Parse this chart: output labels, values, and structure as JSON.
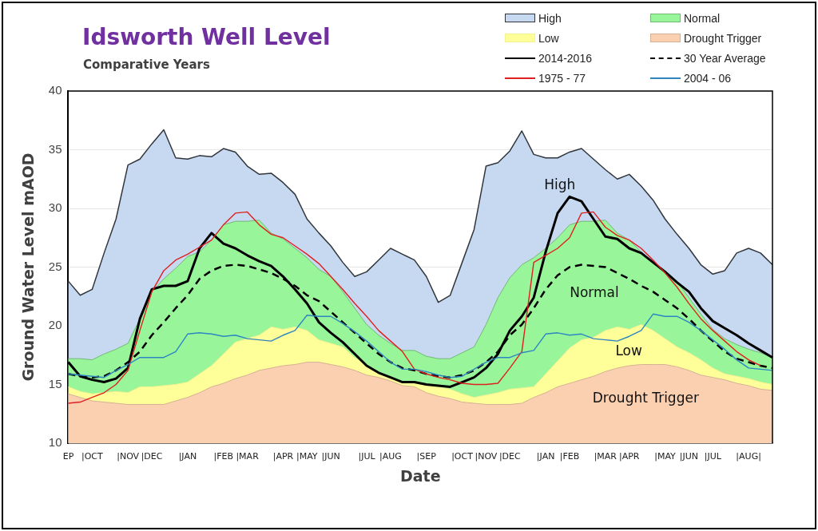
{
  "chart_data": {
    "type": "area",
    "title": "Idsworth Well Level",
    "subtitle": "Comparative Years",
    "xlabel": "Date",
    "ylabel": "Ground Water Level mAOD",
    "categories": [
      "EP",
      null,
      "|OCT",
      null,
      null,
      "|NOV",
      null,
      "|DEC",
      null,
      null,
      "|JAN",
      null,
      null,
      "|FEB",
      null,
      "|MAR",
      null,
      null,
      "|APR",
      null,
      "|MAY",
      null,
      "|JUN",
      null,
      null,
      "|JUL",
      null,
      "|AUG",
      null,
      null,
      "|SEP",
      null,
      null,
      "|OCT",
      null,
      "|NOV",
      null,
      "|DEC",
      null,
      null,
      "|JAN",
      null,
      "|FEB",
      null,
      null,
      "|MAR",
      null,
      "|APR",
      null,
      null,
      "|MAY",
      null,
      "|JUN",
      null,
      "|JUL",
      null,
      null,
      "|AUG|",
      null,
      null
    ],
    "series": [
      {
        "name": "High",
        "color": "#c6d9f1",
        "values": [
          23.8,
          22.6,
          23.1,
          26.2,
          29.1,
          33.7,
          34.2,
          35.5,
          36.7,
          34.3,
          34.2,
          34.5,
          34.4,
          35.1,
          34.8,
          33.6,
          32.9,
          33.0,
          32.2,
          31.2,
          29.1,
          27.9,
          26.8,
          25.4,
          24.2,
          24.6,
          25.6,
          26.6,
          26.1,
          25.6,
          24.2,
          22.0,
          22.6,
          25.4,
          28.2,
          33.6,
          33.9,
          34.9,
          36.6,
          34.6,
          34.3,
          34.3,
          34.8,
          35.1,
          34.2,
          33.3,
          32.5,
          32.9,
          31.9,
          30.7,
          29.1,
          27.8,
          26.6,
          25.2,
          24.4,
          24.7,
          26.2,
          26.6,
          26.2,
          25.2
        ]
      },
      {
        "name": "Normal",
        "color": "#99f59a",
        "values": [
          17.2,
          17.2,
          17.1,
          17.6,
          18.0,
          18.5,
          20.6,
          22.9,
          24.0,
          24.9,
          25.9,
          26.3,
          27.3,
          28.6,
          28.9,
          28.9,
          29.0,
          27.9,
          27.4,
          26.6,
          25.8,
          24.8,
          24.2,
          22.9,
          21.5,
          20.1,
          19.2,
          18.5,
          17.9,
          17.9,
          17.4,
          17.2,
          17.2,
          17.7,
          18.2,
          20.1,
          22.4,
          24.1,
          25.2,
          25.8,
          26.6,
          27.5,
          28.6,
          28.9,
          28.9,
          29.0,
          27.9,
          27.3,
          26.3,
          25.4,
          24.7,
          23.8,
          22.4,
          21.0,
          19.7,
          18.9,
          18.4,
          18.0,
          17.7,
          17.3
        ]
      },
      {
        "name": "Low",
        "color": "#ffff99",
        "values": [
          14.8,
          14.4,
          14.2,
          14.3,
          14.4,
          14.3,
          14.8,
          14.8,
          14.9,
          15.0,
          15.2,
          15.9,
          16.6,
          17.6,
          18.6,
          18.9,
          19.2,
          19.9,
          19.7,
          19.9,
          19.6,
          18.8,
          18.5,
          18.2,
          17.3,
          16.6,
          16.0,
          15.5,
          15.2,
          15.1,
          14.9,
          14.8,
          14.6,
          14.2,
          13.9,
          14.1,
          14.3,
          14.6,
          14.7,
          14.8,
          15.9,
          17.0,
          18.1,
          18.8,
          19.0,
          19.6,
          19.9,
          19.7,
          20.1,
          19.6,
          18.9,
          18.2,
          17.7,
          17.1,
          16.4,
          15.9,
          15.7,
          15.5,
          15.2,
          15.0
        ]
      },
      {
        "name": "Drought Trigger",
        "color": "#fad0b0",
        "values": [
          14.2,
          13.9,
          13.6,
          13.5,
          13.4,
          13.3,
          13.3,
          13.3,
          13.3,
          13.6,
          13.9,
          14.3,
          14.8,
          15.1,
          15.5,
          15.8,
          16.2,
          16.4,
          16.6,
          16.7,
          16.9,
          16.9,
          16.7,
          16.5,
          16.2,
          15.8,
          15.6,
          15.3,
          14.9,
          14.8,
          14.3,
          14.0,
          13.8,
          13.5,
          13.4,
          13.3,
          13.3,
          13.3,
          13.4,
          13.9,
          14.3,
          14.8,
          15.1,
          15.4,
          15.7,
          16.1,
          16.4,
          16.6,
          16.7,
          16.7,
          16.7,
          16.5,
          16.2,
          15.8,
          15.6,
          15.4,
          15.1,
          14.9,
          14.6,
          14.5
        ]
      },
      {
        "name": "2014-2016",
        "type": "line",
        "color": "#000000",
        "line_style": "solid",
        "values": [
          16.9,
          15.7,
          15.4,
          15.2,
          15.5,
          16.4,
          20.6,
          23.1,
          23.4,
          23.4,
          23.8,
          26.6,
          27.9,
          27.0,
          26.6,
          26.0,
          25.5,
          25.1,
          24.2,
          23.1,
          21.9,
          20.3,
          19.4,
          18.6,
          17.6,
          16.6,
          16.0,
          15.6,
          15.2,
          15.2,
          15.0,
          14.9,
          14.8,
          15.2,
          15.6,
          16.4,
          17.6,
          19.6,
          20.8,
          22.4,
          26.3,
          29.6,
          31.0,
          30.6,
          29.1,
          27.6,
          27.4,
          26.6,
          26.2,
          25.4,
          24.6,
          23.7,
          22.9,
          21.5,
          20.4,
          19.8,
          19.2,
          18.5,
          17.9,
          17.3
        ]
      },
      {
        "name": "30 Year Average",
        "type": "line",
        "color": "#000000",
        "line_style": "dashed",
        "values": [
          15.9,
          15.7,
          15.6,
          15.7,
          16.2,
          16.9,
          17.8,
          19.2,
          20.3,
          21.5,
          22.6,
          24.0,
          24.7,
          25.1,
          25.2,
          25.1,
          24.8,
          24.5,
          24.0,
          23.4,
          22.6,
          22.1,
          21.2,
          20.3,
          19.4,
          18.5,
          17.6,
          16.9,
          16.4,
          16.2,
          15.9,
          15.7,
          15.6,
          15.8,
          16.2,
          16.9,
          17.8,
          19.2,
          20.1,
          21.5,
          23.1,
          24.3,
          25.0,
          25.2,
          25.1,
          25.0,
          24.5,
          24.0,
          23.4,
          22.9,
          22.2,
          21.5,
          20.6,
          19.6,
          18.7,
          17.8,
          17.2,
          16.9,
          16.6,
          16.4
        ]
      },
      {
        "name": "1975 - 77",
        "type": "line",
        "color": "#e02020",
        "line_style": "solid",
        "values": [
          13.4,
          13.5,
          13.9,
          14.3,
          15.0,
          16.2,
          19.6,
          22.9,
          24.7,
          25.6,
          26.1,
          26.7,
          27.3,
          28.6,
          29.6,
          29.7,
          28.6,
          27.8,
          27.5,
          26.8,
          26.1,
          25.3,
          24.2,
          23.1,
          21.9,
          20.8,
          19.6,
          18.7,
          17.8,
          16.3,
          15.9,
          15.6,
          15.4,
          15.1,
          15.0,
          15.0,
          15.1,
          16.4,
          17.8,
          25.4,
          26.0,
          26.6,
          27.5,
          29.6,
          29.7,
          28.4,
          27.7,
          27.3,
          26.6,
          25.6,
          24.5,
          23.3,
          21.9,
          20.6,
          19.6,
          18.7,
          17.8,
          17.1,
          16.6,
          null
        ]
      },
      {
        "name": "2004 - 06",
        "type": "line",
        "color": "#2e86c1",
        "line_style": "solid",
        "values": [
          15.9,
          15.8,
          15.7,
          15.6,
          16.2,
          16.7,
          17.3,
          17.3,
          17.3,
          17.8,
          19.3,
          19.4,
          19.3,
          19.1,
          19.2,
          18.9,
          18.8,
          18.7,
          19.2,
          19.6,
          20.9,
          20.8,
          20.8,
          20.2,
          19.5,
          18.7,
          17.8,
          16.9,
          16.3,
          16.3,
          16.1,
          15.8,
          15.6,
          15.7,
          16.3,
          16.9,
          17.3,
          17.3,
          17.7,
          17.9,
          19.3,
          19.4,
          19.2,
          19.3,
          18.9,
          18.8,
          18.7,
          19.1,
          19.6,
          21.0,
          20.8,
          20.8,
          20.3,
          19.6,
          18.8,
          18.0,
          17.1,
          16.4,
          16.3,
          16.2
        ]
      }
    ],
    "ylim": [
      10,
      40
    ],
    "yticks": [
      10,
      15,
      20,
      25,
      30,
      35,
      40
    ],
    "grid": "y",
    "legend": "top right",
    "marker": "none",
    "annotations": [
      "High",
      "Normal",
      "Low",
      "Drought Trigger"
    ]
  }
}
